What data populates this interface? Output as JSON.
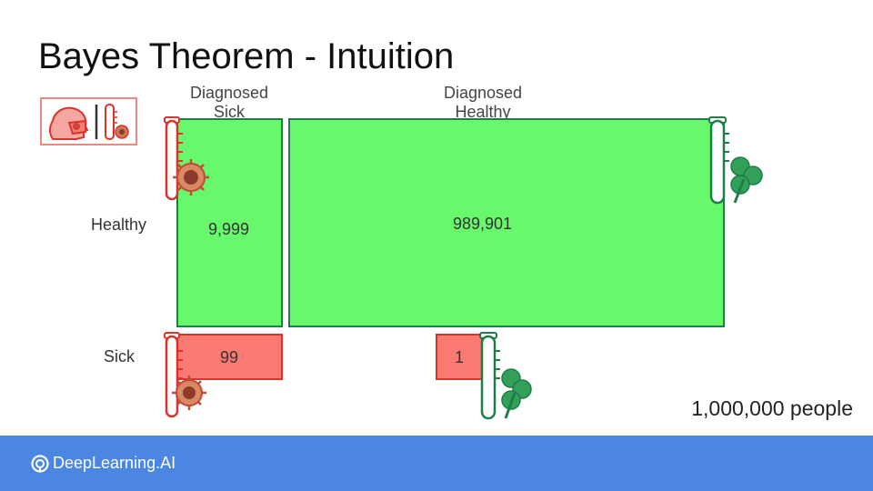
{
  "slide": {
    "title": "Bayes Theorem - Intuition",
    "columns": {
      "diagnosed_sick": "Diagnosed\nSick",
      "diagnosed_healthy": "Diagnosed\nHealthy"
    },
    "rows": {
      "healthy": "Healthy",
      "sick": "Sick"
    },
    "cells": {
      "healthy_diagnosed_sick": "9,999",
      "healthy_diagnosed_healthy": "989,901",
      "sick_diagnosed_sick": "99",
      "sick_diagnosed_healthy": "1"
    },
    "population": "1,000,000 people"
  },
  "footer": {
    "brand": "DeepLearning.AI"
  },
  "colors": {
    "green": "#67f86b",
    "green_border": "#1f7d4a",
    "red": "#f97a72",
    "red_border": "#d9342b",
    "footer": "#4b86e3"
  },
  "icons": [
    "sick-person-mask-icon",
    "test-tube-virus-icon",
    "virus-icon",
    "test-tube-shamrock-icon",
    "shamrock-icon",
    "deeplearning-logo-icon"
  ]
}
